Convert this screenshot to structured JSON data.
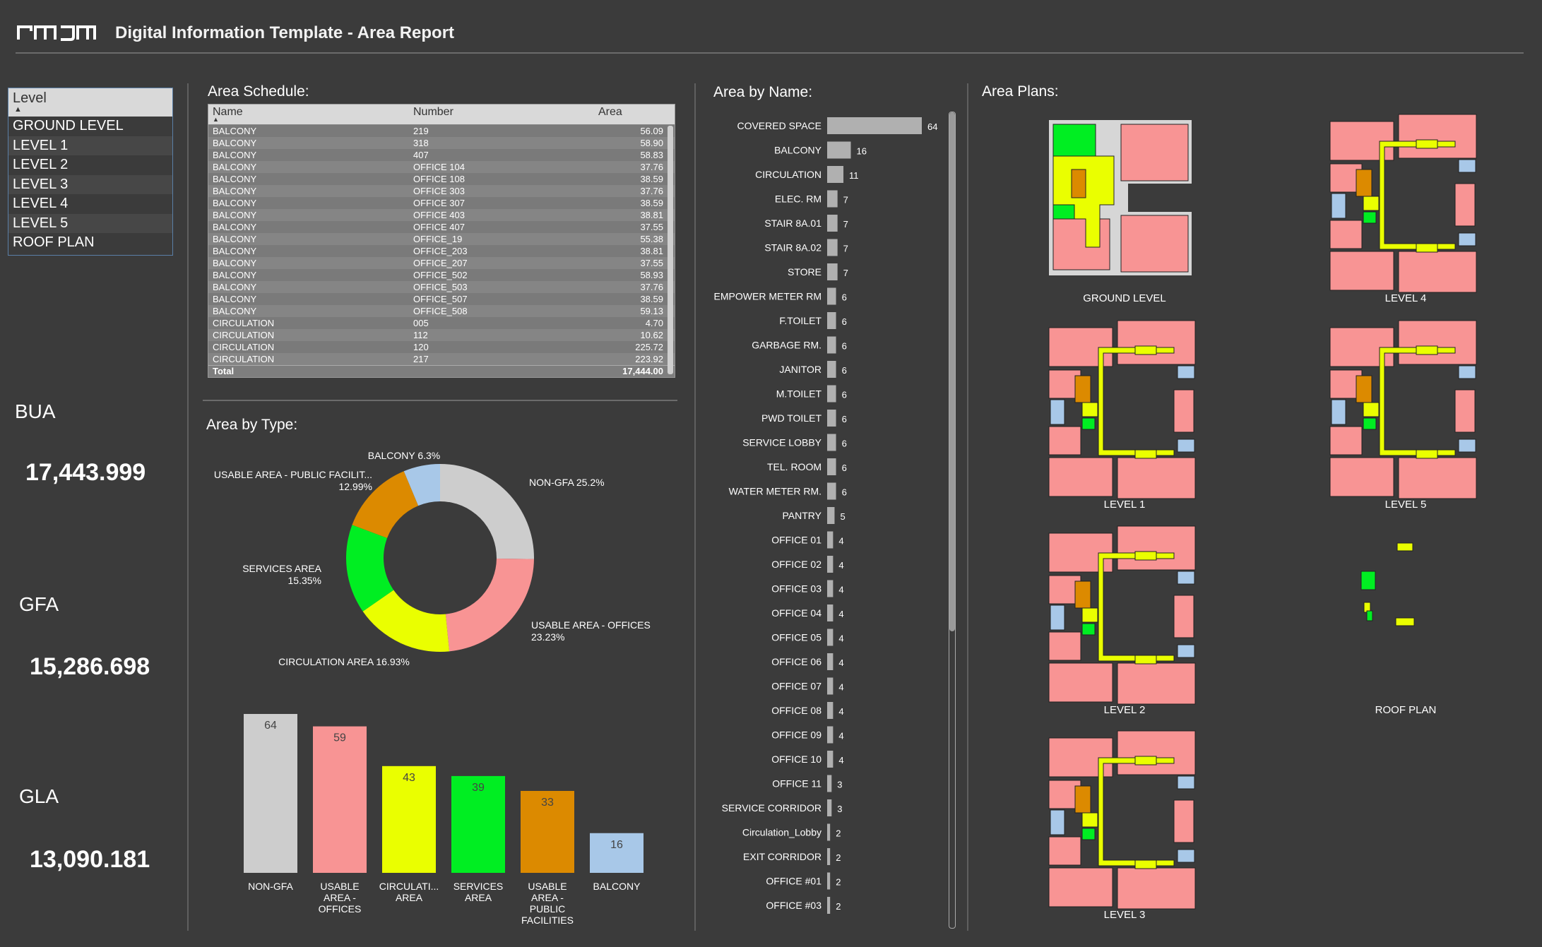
{
  "header": {
    "logo_text": "rmjm",
    "title": "Digital Information Template - Area Report"
  },
  "slicer": {
    "header": "Level",
    "items": [
      "GROUND LEVEL",
      "LEVEL 1",
      "LEVEL 2",
      "LEVEL 3",
      "LEVEL 4",
      "LEVEL 5",
      "ROOF PLAN"
    ]
  },
  "kpis": [
    {
      "label": "BUA",
      "value": "17,443.999"
    },
    {
      "label": "GFA",
      "value": "15,286.698"
    },
    {
      "label": "GLA",
      "value": "13,090.181"
    }
  ],
  "area_schedule": {
    "title": "Area Schedule:",
    "columns": [
      "Name",
      "Number",
      "Area"
    ],
    "rows": [
      [
        "BALCONY",
        "219",
        "56.09"
      ],
      [
        "BALCONY",
        "318",
        "58.90"
      ],
      [
        "BALCONY",
        "407",
        "58.83"
      ],
      [
        "BALCONY",
        "OFFICE 104",
        "37.76"
      ],
      [
        "BALCONY",
        "OFFICE 108",
        "38.59"
      ],
      [
        "BALCONY",
        "OFFICE 303",
        "37.76"
      ],
      [
        "BALCONY",
        "OFFICE 307",
        "38.59"
      ],
      [
        "BALCONY",
        "OFFICE 403",
        "38.81"
      ],
      [
        "BALCONY",
        "OFFICE 407",
        "37.55"
      ],
      [
        "BALCONY",
        "OFFICE_19",
        "55.38"
      ],
      [
        "BALCONY",
        "OFFICE_203",
        "38.81"
      ],
      [
        "BALCONY",
        "OFFICE_207",
        "37.55"
      ],
      [
        "BALCONY",
        "OFFICE_502",
        "58.93"
      ],
      [
        "BALCONY",
        "OFFICE_503",
        "37.76"
      ],
      [
        "BALCONY",
        "OFFICE_507",
        "38.59"
      ],
      [
        "BALCONY",
        "OFFICE_508",
        "59.13"
      ],
      [
        "CIRCULATION",
        "005",
        "4.70"
      ],
      [
        "CIRCULATION",
        "112",
        "10.62"
      ],
      [
        "CIRCULATION",
        "120",
        "225.72"
      ],
      [
        "CIRCULATION",
        "217",
        "223.92"
      ]
    ],
    "total_label": "Total",
    "total_value": "17,444.00"
  },
  "area_by_type_title": "Area by Type:",
  "area_by_name_title": "Area by Name:",
  "area_plans_title": "Area Plans:",
  "colors": {
    "nongfa": "#cdcdcd",
    "offices": "#f89494",
    "circulation": "#eaff00",
    "services": "#00ee22",
    "public": "#dc8a00",
    "balcony": "#a8c8e8",
    "bar_gray": "#b0b0b0"
  },
  "chart_data": [
    {
      "type": "pie",
      "title": "Area by Type:",
      "slices": [
        {
          "label": "NON-GFA 25.2%",
          "name": "NON-GFA",
          "value": 25.2,
          "color": "#cdcdcd"
        },
        {
          "label": "USABLE AREA - OFFICES 23.23%",
          "name": "USABLE AREA - OFFICES",
          "value": 23.23,
          "color": "#f89494"
        },
        {
          "label": "CIRCULATION AREA 16.93%",
          "name": "CIRCULATION AREA",
          "value": 16.93,
          "color": "#eaff00"
        },
        {
          "label": "SERVICES AREA 15.35%",
          "name": "SERVICES AREA",
          "value": 15.35,
          "color": "#00ee22"
        },
        {
          "label": "USABLE AREA - PUBLIC FACILIT... 12.99%",
          "name": "USABLE AREA - PUBLIC FACILITIES",
          "value": 12.99,
          "color": "#dc8a00"
        },
        {
          "label": "BALCONY 6.3%",
          "name": "BALCONY",
          "value": 6.3,
          "color": "#a8c8e8"
        }
      ]
    },
    {
      "type": "bar",
      "categories": [
        "NON-GFA",
        "USABLE AREA - OFFICES",
        "CIRCULATI... AREA",
        "SERVICES AREA",
        "USABLE AREA - PUBLIC FACILITIES",
        "BALCONY"
      ],
      "category_lines": [
        [
          "NON-GFA"
        ],
        [
          "USABLE",
          "AREA -",
          "OFFICES"
        ],
        [
          "CIRCULATI...",
          "AREA"
        ],
        [
          "SERVICES",
          "AREA"
        ],
        [
          "USABLE",
          "AREA -",
          "PUBLIC",
          "FACILITIES"
        ],
        [
          "BALCONY"
        ]
      ],
      "values": [
        64,
        59,
        43,
        39,
        33,
        16
      ],
      "colors": [
        "#cdcdcd",
        "#f89494",
        "#eaff00",
        "#00ee22",
        "#dc8a00",
        "#a8c8e8"
      ],
      "ylim": [
        0,
        64
      ]
    },
    {
      "type": "bar",
      "orientation": "horizontal",
      "title": "Area by Name:",
      "categories": [
        "COVERED SPACE",
        "BALCONY",
        "CIRCULATION",
        "ELEC. RM",
        "STAIR 8A.01",
        "STAIR 8A.02",
        "STORE",
        "EMPOWER METER RM",
        "F.TOILET",
        "GARBAGE RM.",
        "JANITOR",
        "M.TOILET",
        "PWD TOILET",
        "SERVICE LOBBY",
        "TEL. ROOM",
        "WATER METER RM.",
        "PANTRY",
        "OFFICE 01",
        "OFFICE 02",
        "OFFICE 03",
        "OFFICE 04",
        "OFFICE 05",
        "OFFICE 06",
        "OFFICE 07",
        "OFFICE 08",
        "OFFICE 09",
        "OFFICE 10",
        "OFFICE 11",
        "SERVICE CORRIDOR",
        "Circulation_Lobby",
        "EXIT CORRIDOR",
        "OFFICE #01",
        "OFFICE #03"
      ],
      "values": [
        64,
        16,
        11,
        7,
        7,
        7,
        7,
        6,
        6,
        6,
        6,
        6,
        6,
        6,
        6,
        6,
        5,
        4,
        4,
        4,
        4,
        4,
        4,
        4,
        4,
        4,
        4,
        3,
        3,
        2,
        2,
        2,
        2
      ],
      "xlim": [
        0,
        64
      ]
    }
  ],
  "plans": [
    {
      "label": "GROUND LEVEL"
    },
    {
      "label": "LEVEL 4"
    },
    {
      "label": "LEVEL 1"
    },
    {
      "label": "LEVEL 5"
    },
    {
      "label": "LEVEL 2"
    },
    {
      "label": "ROOF PLAN"
    },
    {
      "label": "LEVEL 3"
    }
  ]
}
